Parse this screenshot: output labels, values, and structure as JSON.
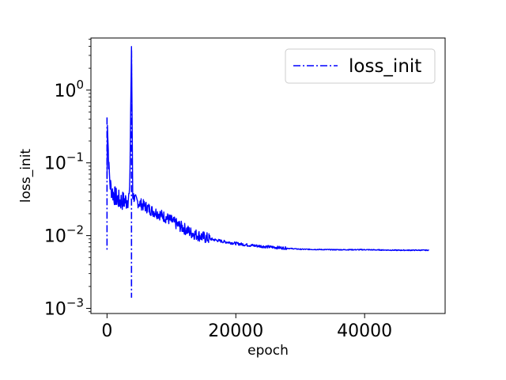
{
  "chart_data": {
    "type": "line",
    "title": "",
    "xlabel": "epoch",
    "ylabel": "loss_init",
    "xlim": [
      -2500,
      52500
    ],
    "ylim": [
      0.00085,
      5.2
    ],
    "yscale": "log",
    "x_ticks": [
      {
        "value": 0,
        "label": "0"
      },
      {
        "value": 20000,
        "label": "20000"
      },
      {
        "value": 40000,
        "label": "40000"
      }
    ],
    "y_ticks": [
      {
        "value": 0.001,
        "base": "10",
        "exp": "−3"
      },
      {
        "value": 0.01,
        "base": "10",
        "exp": "−2"
      },
      {
        "value": 0.1,
        "base": "10",
        "exp": "−1"
      },
      {
        "value": 1,
        "base": "10",
        "exp": "0"
      }
    ],
    "grid": false,
    "legend_position": "top-right",
    "series": [
      {
        "name": "loss_init",
        "color": "#0000ff",
        "linestyle": "dashdot",
        "noise": true,
        "x": [
          0,
          60,
          150,
          300,
          500,
          800,
          1200,
          1600,
          2000,
          2500,
          3000,
          3500,
          3800,
          4000,
          4500,
          5000,
          6000,
          7000,
          8000,
          9000,
          10000,
          11000,
          12000,
          13000,
          14000,
          15000,
          16000,
          18000,
          20000,
          22000,
          25000,
          28000,
          30000,
          35000,
          40000,
          45000,
          50000
        ],
        "y": [
          0.06,
          0.42,
          0.2,
          0.08,
          0.05,
          0.04,
          0.035,
          0.032,
          0.03,
          0.03,
          0.03,
          0.035,
          3.5,
          0.036,
          0.03,
          0.028,
          0.025,
          0.022,
          0.02,
          0.018,
          0.016,
          0.014,
          0.0125,
          0.011,
          0.0102,
          0.0095,
          0.009,
          0.0083,
          0.0078,
          0.0074,
          0.007,
          0.0067,
          0.0065,
          0.0064,
          0.0064,
          0.0063,
          0.0063
        ]
      }
    ],
    "spikes": [
      {
        "x": 0,
        "y_min": 0.006,
        "y_max": 0.42
      },
      {
        "x": 3800,
        "y_min": 0.0014,
        "y_max": 3.5
      }
    ]
  }
}
